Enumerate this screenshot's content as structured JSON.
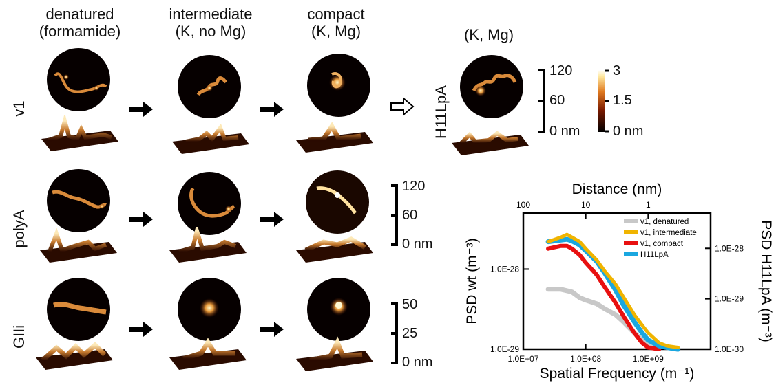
{
  "columns": [
    {
      "line1": "denatured",
      "line2": "(formamide)"
    },
    {
      "line1": "intermediate",
      "line2": "(K, no Mg)"
    },
    {
      "line1": "compact",
      "line2": "(K, Mg)"
    },
    {
      "line1": "(K, Mg)",
      "line2": ""
    }
  ],
  "rows": [
    "v1",
    "polyA",
    "GIIi"
  ],
  "h11_label": "H11LpA",
  "height_scale_v1": {
    "top": "120",
    "mid": "60",
    "bottom": "0 nm"
  },
  "height_scale_polyA": {
    "top": "120",
    "mid": "60",
    "bottom": "0 nm"
  },
  "height_scale_GIIi": {
    "top": "50",
    "mid": "25",
    "bottom": "0 nm"
  },
  "color_scale": {
    "top": "3",
    "mid": "1.5",
    "bottom": "0 nm"
  },
  "chart_data": {
    "type": "line",
    "title": "",
    "xlabel": "Spatial Frequency (m⁻¹)",
    "x2label": "Distance (nm)",
    "ylabel": "PSD wt (m⁻³)",
    "y2label": "PSD H11LpA (m⁻³)",
    "xscale": "log",
    "yscale": "log",
    "xlim": [
      10000000.0,
      10000000000.0
    ],
    "ylim": [
      1e-29,
      5e-28
    ],
    "y2lim": [
      1e-30,
      5e-28
    ],
    "xticks": [
      "1.0E+07",
      "1.0E+08",
      "1.0E+09"
    ],
    "yticks": [
      "1.0E-29",
      "1.0E-28"
    ],
    "y2ticks": [
      "1.0E-30",
      "1.0E-29",
      "1.0E-28"
    ],
    "x2ticks": [
      "100",
      "10",
      "1"
    ],
    "legend": "top-right",
    "series": [
      {
        "name": "v1, denatured",
        "color": "#c8c8c8",
        "x": [
          25000000.0,
          40000000.0,
          60000000.0,
          80000000.0,
          100000000.0,
          150000000.0,
          200000000.0,
          300000000.0,
          400000000.0,
          600000000.0,
          800000000.0,
          1000000000.0,
          1500000000.0,
          2000000000.0,
          3000000000.0
        ],
        "y": [
          5.6e-29,
          5.6e-29,
          5.2e-29,
          4.4e-29,
          4.1e-29,
          3.7e-29,
          3.2e-29,
          2.7e-29,
          2.2e-29,
          1.6e-29,
          1.3e-29,
          1.2e-29,
          1.1e-29,
          1.05e-29,
          1e-29
        ]
      },
      {
        "name": "v1, intermediate",
        "color": "#f0b400",
        "x": [
          25000000.0,
          40000000.0,
          50000000.0,
          60000000.0,
          80000000.0,
          100000000.0,
          150000000.0,
          200000000.0,
          300000000.0,
          400000000.0,
          600000000.0,
          800000000.0,
          1000000000.0,
          1500000000.0,
          2000000000.0,
          3000000000.0
        ],
        "y": [
          2.2e-28,
          2.5e-28,
          2.7e-28,
          2.5e-28,
          2.2e-28,
          1.8e-28,
          1.3e-28,
          9.5e-29,
          6.5e-29,
          4.5e-29,
          2.7e-29,
          2e-29,
          1.6e-29,
          1.2e-29,
          1.1e-29,
          1.05e-29
        ]
      },
      {
        "name": "v1, compact",
        "color": "#e81010",
        "x": [
          25000000.0,
          40000000.0,
          50000000.0,
          60000000.0,
          80000000.0,
          100000000.0,
          150000000.0,
          200000000.0,
          300000000.0,
          400000000.0,
          600000000.0,
          800000000.0,
          1000000000.0,
          1500000000.0
        ],
        "y": [
          1.8e-28,
          1.95e-28,
          1.95e-28,
          1.8e-28,
          1.5e-28,
          1.2e-28,
          8.5e-29,
          6e-29,
          3.8e-29,
          2.6e-29,
          1.6e-29,
          1.2e-29,
          1.05e-29,
          1e-29
        ]
      },
      {
        "name": "H11LpA",
        "color": "#1aa7e0",
        "x": [
          25000000.0,
          40000000.0,
          50000000.0,
          60000000.0,
          80000000.0,
          100000000.0,
          150000000.0,
          200000000.0,
          300000000.0,
          400000000.0,
          600000000.0,
          800000000.0,
          1000000000.0,
          1500000000.0,
          2000000000.0,
          3000000000.0
        ],
        "y": [
          2.2e-28,
          2.3e-28,
          2.35e-28,
          2.25e-28,
          2e-28,
          1.7e-28,
          1.25e-28,
          9e-29,
          5.5e-29,
          3.6e-29,
          2.2e-29,
          1.6e-29,
          1.3e-29,
          1.1e-29,
          1.05e-29,
          1e-29
        ]
      }
    ]
  }
}
